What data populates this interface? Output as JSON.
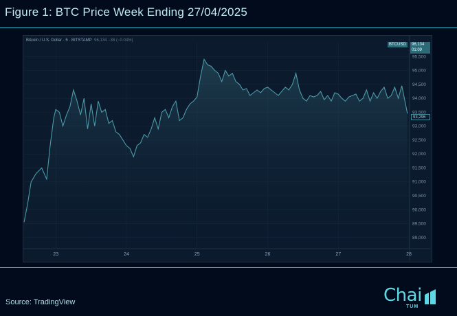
{
  "figure": {
    "title": "Figure 1: BTC Price Week Ending 27/04/2025",
    "source": "Source: TradingView"
  },
  "tv_header": {
    "symbol_text": "Bitcoin / U.S. Dollar · 5 · BITSTAMP",
    "values_text": "96,134 −36 (−0.04%)",
    "ticker": "BTCUSD",
    "price_label": "96,134",
    "countdown": "01:09",
    "last_price_label": "93,296"
  },
  "logo": {
    "word": "Chai",
    "sub": "TUM",
    "accent": "#5fd8e6"
  },
  "chart_data": {
    "type": "line",
    "series": [
      {
        "name": "BTCUSD",
        "color": "#4d9aa8"
      }
    ],
    "x": [
      22.55,
      22.6,
      22.65,
      22.72,
      22.8,
      22.87,
      22.92,
      22.97,
      23.0,
      23.05,
      23.1,
      23.15,
      23.2,
      23.25,
      23.3,
      23.35,
      23.4,
      23.45,
      23.5,
      23.55,
      23.6,
      23.65,
      23.7,
      23.75,
      23.8,
      23.85,
      23.9,
      23.95,
      24.0,
      24.05,
      24.1,
      24.15,
      24.2,
      24.25,
      24.3,
      24.35,
      24.4,
      24.45,
      24.5,
      24.55,
      24.6,
      24.65,
      24.7,
      24.75,
      24.8,
      24.85,
      24.9,
      24.95,
      25.0,
      25.05,
      25.1,
      25.15,
      25.2,
      25.25,
      25.3,
      25.35,
      25.4,
      25.45,
      25.5,
      25.55,
      25.6,
      25.65,
      25.7,
      25.75,
      25.8,
      25.85,
      25.9,
      25.95,
      26.0,
      26.05,
      26.1,
      26.15,
      26.2,
      26.25,
      26.3,
      26.35,
      26.4,
      26.45,
      26.5,
      26.55,
      26.6,
      26.65,
      26.7,
      26.75,
      26.8,
      26.85,
      26.9,
      26.95,
      27.0,
      27.05,
      27.1,
      27.15,
      27.2,
      27.25,
      27.3,
      27.35,
      27.4,
      27.45,
      27.5,
      27.55,
      27.6,
      27.65,
      27.7,
      27.75,
      27.8,
      27.85,
      27.9,
      27.94,
      27.98
    ],
    "y": [
      89.55,
      90.2,
      91.0,
      91.3,
      91.5,
      91.1,
      92.3,
      93.3,
      93.6,
      93.5,
      93.0,
      93.4,
      93.7,
      94.3,
      93.9,
      93.4,
      94.0,
      92.9,
      93.8,
      93.0,
      93.9,
      93.5,
      93.6,
      93.1,
      93.2,
      92.8,
      92.7,
      92.5,
      92.3,
      92.2,
      91.9,
      92.3,
      92.4,
      92.7,
      92.6,
      92.9,
      93.3,
      92.9,
      93.5,
      93.6,
      93.3,
      93.7,
      93.9,
      93.2,
      93.3,
      93.6,
      93.8,
      93.9,
      94.05,
      94.8,
      95.4,
      95.2,
      95.15,
      95.0,
      94.9,
      94.6,
      95.0,
      94.8,
      94.9,
      94.6,
      94.5,
      94.3,
      94.35,
      94.1,
      94.2,
      94.3,
      94.2,
      94.35,
      94.4,
      94.3,
      94.2,
      94.1,
      94.25,
      94.4,
      94.3,
      94.5,
      94.9,
      94.3,
      94.0,
      93.9,
      94.1,
      94.05,
      94.1,
      94.25,
      93.95,
      94.1,
      93.9,
      94.2,
      94.15,
      94.0,
      93.9,
      94.05,
      94.1,
      94.15,
      93.9,
      94.0,
      94.3,
      93.9,
      94.2,
      94.0,
      94.25,
      94.4,
      94.0,
      94.1,
      94.4,
      94.0,
      94.45,
      93.95,
      93.45
    ],
    "xlim": [
      22.55,
      28.0
    ],
    "ylim": [
      88.7,
      96.0
    ],
    "xticks": [
      23,
      24,
      25,
      26,
      27,
      28
    ],
    "xtick_labels": [
      "23",
      "24",
      "25",
      "26",
      "27",
      "28"
    ],
    "yticks": [
      89.0,
      89.5,
      90.0,
      90.5,
      91.0,
      91.5,
      92.0,
      92.5,
      93.0,
      93.5,
      94.0,
      94.5,
      95.0,
      95.5
    ],
    "ytick_labels": [
      "89,000",
      "89,500",
      "90,000",
      "90,500",
      "91,000",
      "91,500",
      "92,000",
      "92,500",
      "93,000",
      "93,500",
      "94,000",
      "94,500",
      "95,000",
      "95,500"
    ],
    "y_unit": "thousand USD",
    "last_price": 93.296,
    "grid": true,
    "legend": "none"
  }
}
